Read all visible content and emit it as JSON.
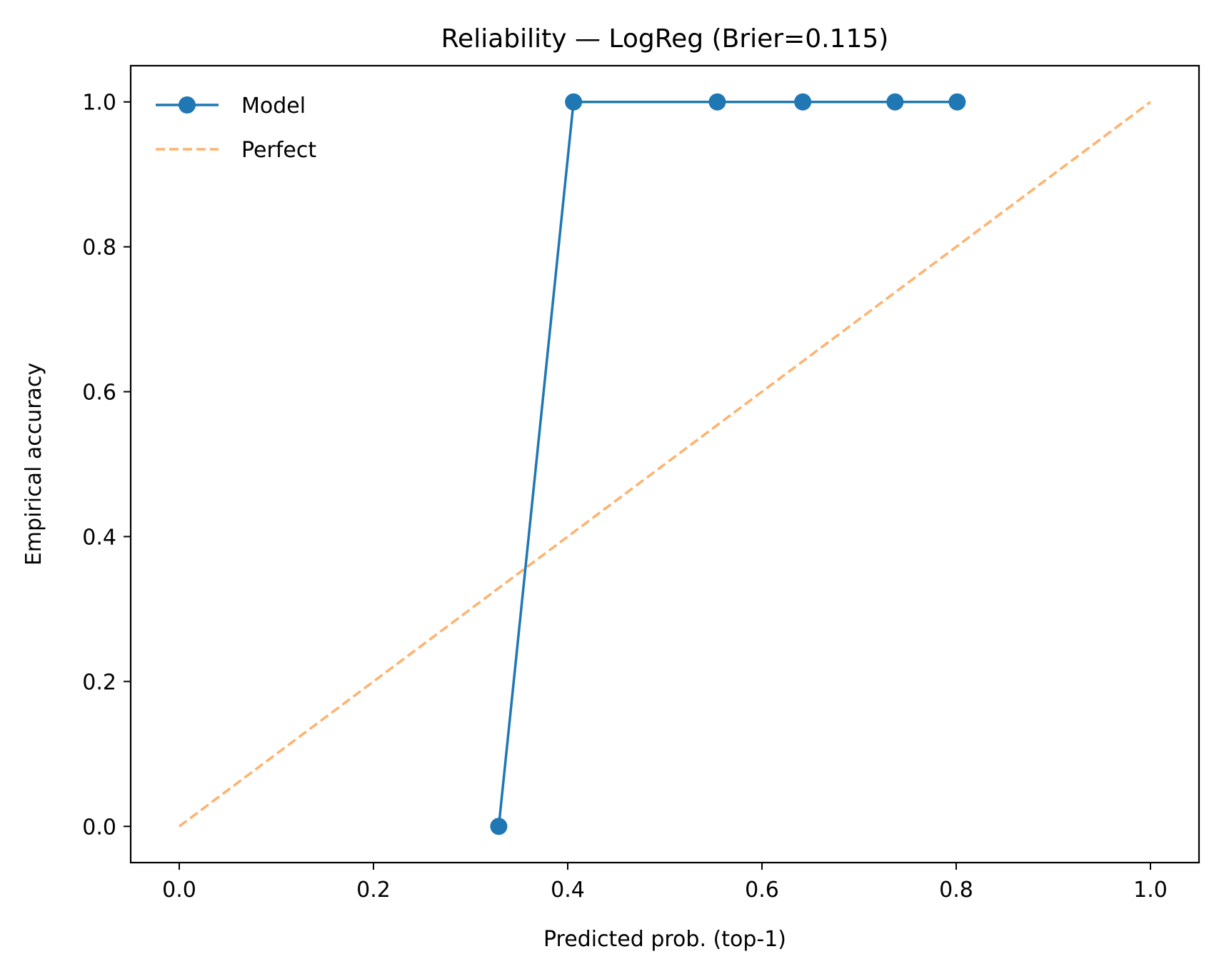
{
  "chart_data": {
    "type": "line",
    "title": "Reliability — LogReg (Brier=0.115)",
    "xlabel": "Predicted prob. (top-1)",
    "ylabel": "Empirical accuracy",
    "xlim": [
      -0.05,
      1.05
    ],
    "ylim": [
      -0.05,
      1.05
    ],
    "xticks": [
      "0.0",
      "0.2",
      "0.4",
      "0.6",
      "0.8",
      "1.0"
    ],
    "yticks": [
      "0.0",
      "0.2",
      "0.4",
      "0.6",
      "0.8",
      "1.0"
    ],
    "grid": false,
    "legend_position": "top-left",
    "series": [
      {
        "name": "Model",
        "color": "#1f77b4",
        "style": "solid-with-markers",
        "x": [
          0.329,
          0.406,
          0.554,
          0.642,
          0.737,
          0.801
        ],
        "y": [
          0.0,
          1.0,
          1.0,
          1.0,
          1.0,
          1.0
        ]
      },
      {
        "name": "Perfect",
        "color": "#ffb26e",
        "style": "dashed",
        "x": [
          0.0,
          1.0
        ],
        "y": [
          0.0,
          1.0
        ]
      }
    ]
  }
}
